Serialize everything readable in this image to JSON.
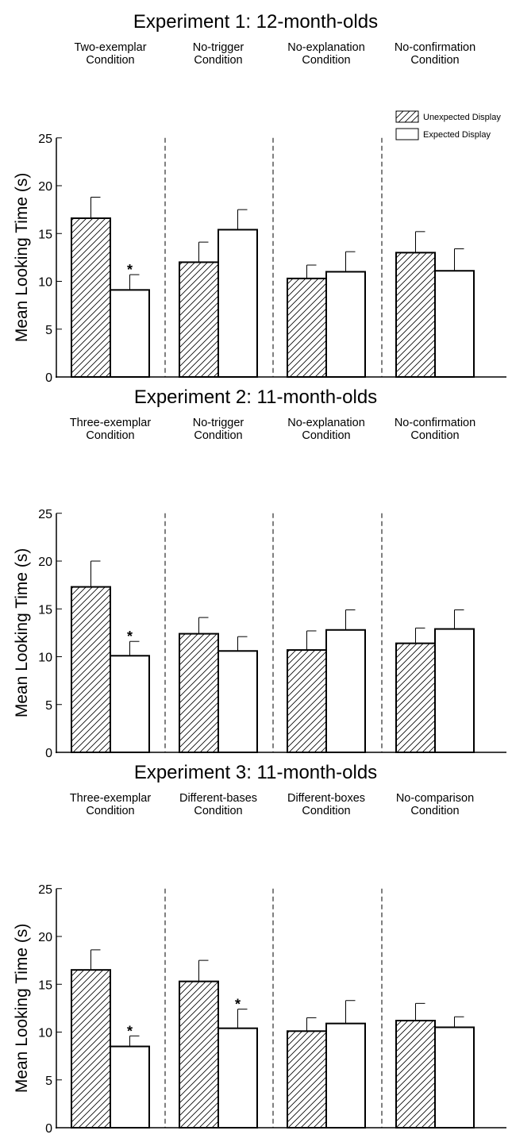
{
  "legend": {
    "unexpected": "Unexpected Display",
    "expected": "Expected Display"
  },
  "colors": {
    "ink": "#000000",
    "background": "#ffffff"
  },
  "chart_data": [
    {
      "type": "bar",
      "title": "Experiment 1: 12-month-olds",
      "ylabel": "Mean Looking Time (s)",
      "ylim": [
        0,
        25
      ],
      "yticks": [
        0,
        5,
        10,
        15,
        20,
        25
      ],
      "legend_position": "top-right",
      "show_legend": true,
      "groups": [
        {
          "label": [
            "Two-exemplar",
            "Condition"
          ],
          "unexpected": 16.6,
          "unexpected_err": 2.2,
          "expected": 9.1,
          "expected_err": 1.6,
          "significant": true
        },
        {
          "label": [
            "No-trigger",
            "Condition"
          ],
          "unexpected": 12.0,
          "unexpected_err": 2.1,
          "expected": 15.4,
          "expected_err": 2.1,
          "significant": false
        },
        {
          "label": [
            "No-explanation",
            "Condition"
          ],
          "unexpected": 10.3,
          "unexpected_err": 1.4,
          "expected": 11.0,
          "expected_err": 2.1,
          "significant": false
        },
        {
          "label": [
            "No-confirmation",
            "Condition"
          ],
          "unexpected": 13.0,
          "unexpected_err": 2.2,
          "expected": 11.1,
          "expected_err": 2.3,
          "significant": false
        }
      ]
    },
    {
      "type": "bar",
      "title": "Experiment 2: 11-month-olds",
      "ylabel": "Mean Looking Time (s)",
      "ylim": [
        0,
        25
      ],
      "yticks": [
        0,
        5,
        10,
        15,
        20,
        25
      ],
      "show_legend": false,
      "groups": [
        {
          "label": [
            "Three-exemplar",
            "Condition"
          ],
          "unexpected": 17.3,
          "unexpected_err": 2.7,
          "expected": 10.1,
          "expected_err": 1.5,
          "significant": true
        },
        {
          "label": [
            "No-trigger",
            "Condition"
          ],
          "unexpected": 12.4,
          "unexpected_err": 1.7,
          "expected": 10.6,
          "expected_err": 1.5,
          "significant": false
        },
        {
          "label": [
            "No-explanation",
            "Condition"
          ],
          "unexpected": 10.7,
          "unexpected_err": 2.0,
          "expected": 12.8,
          "expected_err": 2.1,
          "significant": false
        },
        {
          "label": [
            "No-confirmation",
            "Condition"
          ],
          "unexpected": 11.4,
          "unexpected_err": 1.6,
          "expected": 12.9,
          "expected_err": 2.0,
          "significant": false
        }
      ]
    },
    {
      "type": "bar",
      "title": "Experiment 3: 11-month-olds",
      "ylabel": "Mean Looking Time (s)",
      "ylim": [
        0,
        25
      ],
      "yticks": [
        0,
        5,
        10,
        15,
        20,
        25
      ],
      "show_legend": false,
      "groups": [
        {
          "label": [
            "Three-exemplar",
            "Condition"
          ],
          "unexpected": 16.5,
          "unexpected_err": 2.1,
          "expected": 8.5,
          "expected_err": 1.1,
          "significant": true
        },
        {
          "label": [
            "Different-bases",
            "Condition"
          ],
          "unexpected": 15.3,
          "unexpected_err": 2.2,
          "expected": 10.4,
          "expected_err": 2.0,
          "significant": true
        },
        {
          "label": [
            "Different-boxes",
            "Condition"
          ],
          "unexpected": 10.1,
          "unexpected_err": 1.4,
          "expected": 10.9,
          "expected_err": 2.4,
          "significant": false
        },
        {
          "label": [
            "No-comparison",
            "Condition"
          ],
          "unexpected": 11.2,
          "unexpected_err": 1.8,
          "expected": 10.5,
          "expected_err": 1.1,
          "significant": false
        }
      ]
    }
  ]
}
